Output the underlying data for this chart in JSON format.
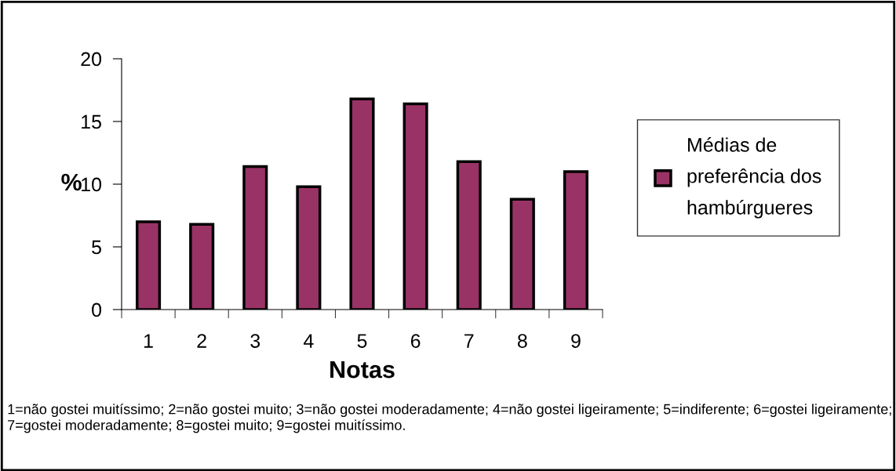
{
  "chart_data": {
    "type": "bar",
    "xlabel": "Notas",
    "ylabel": "%",
    "categories": [
      "1",
      "2",
      "3",
      "4",
      "5",
      "6",
      "7",
      "8",
      "9"
    ],
    "series": [
      {
        "name": "Médias de preferência dos hambúrgueres",
        "color": "#993366",
        "values": [
          7.0,
          6.8,
          11.4,
          9.8,
          16.8,
          16.4,
          11.8,
          8.8,
          11.0
        ]
      }
    ],
    "ylim": [
      0,
      20
    ],
    "yticks": [
      0,
      5,
      10,
      15,
      20
    ],
    "grid": false,
    "legend": "right",
    "annotations": [
      "1=não gostei muitíssimo; 2=não gostei muito; 3=não gostei moderadamente; 4=não gostei ligeiramente; 5=indiferente; 6=gostei ligeiramente; 7=gostei moderadamente; 8=gostei muito; 9=gostei muitíssimo."
    ]
  }
}
